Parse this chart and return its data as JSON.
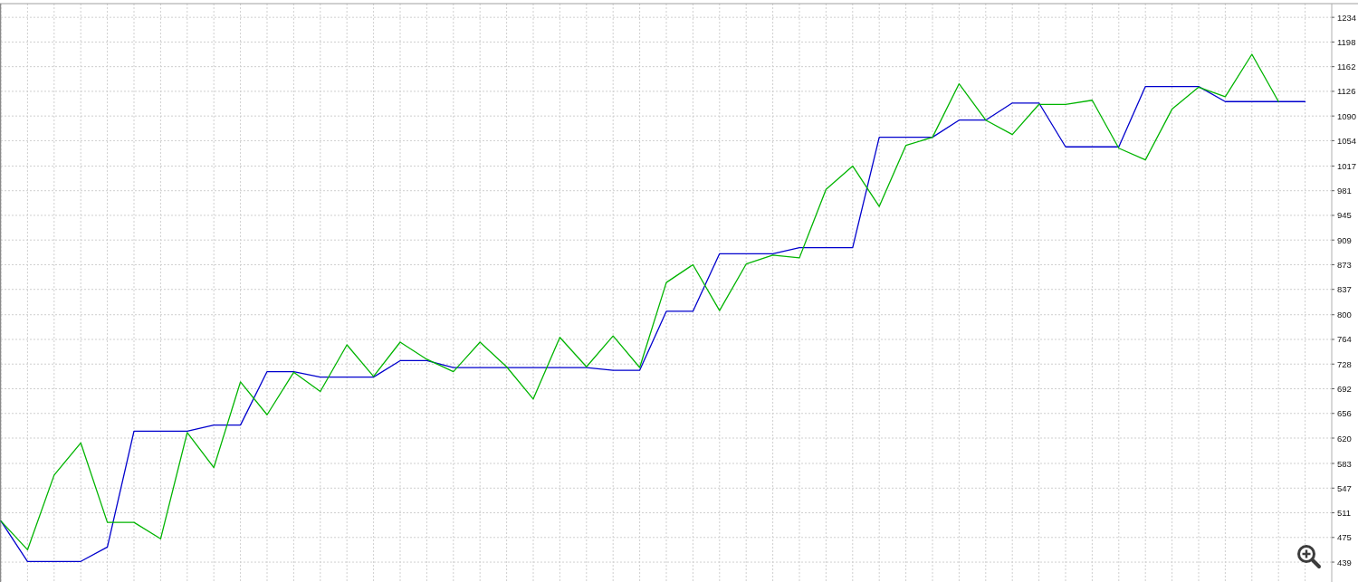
{
  "chart_data": {
    "type": "line",
    "categories": [
      null,
      null,
      null,
      null,
      null,
      null,
      null,
      null,
      null,
      null,
      null,
      null,
      null,
      null,
      null,
      null,
      null,
      null,
      null,
      null,
      null,
      null,
      null,
      null,
      null,
      null,
      null,
      null,
      null,
      null,
      null,
      null,
      null,
      null,
      null,
      null,
      null,
      null,
      null,
      null,
      null,
      null,
      null,
      null,
      null,
      null,
      null,
      null,
      null,
      null
    ],
    "series": [
      {
        "color": "#0000cd",
        "values": [
          499,
          440,
          440,
          440,
          461,
          630,
          630,
          630,
          639,
          639,
          717,
          717,
          709,
          709,
          709,
          733,
          733,
          723,
          723,
          723,
          723,
          723,
          723,
          719,
          719,
          805,
          805,
          889,
          889,
          889,
          898,
          898,
          898,
          1059,
          1059,
          1059,
          1084,
          1084,
          1109,
          1109,
          1045,
          1045,
          1045,
          1133,
          1133,
          1133,
          1111,
          1111,
          1111,
          1111
        ]
      },
      {
        "color": "#00b400",
        "values": [
          499,
          457,
          566,
          613,
          497,
          497,
          473,
          628,
          577,
          702,
          654,
          716,
          688,
          756,
          710,
          760,
          735,
          717,
          760,
          724,
          677,
          767,
          724,
          769,
          723,
          847,
          873,
          806,
          874,
          887,
          883,
          983,
          1017,
          958,
          1047,
          1059,
          1137,
          1084,
          1063,
          1107,
          1107,
          1113,
          1043,
          1026,
          1100,
          1132,
          1118,
          1180,
          1111,
          null
        ]
      }
    ],
    "ylim": [
      410,
      1254
    ],
    "yticks": [
      439,
      475,
      511,
      547,
      583,
      620,
      656,
      692,
      728,
      764,
      800,
      837,
      873,
      909,
      945,
      981,
      1017,
      1054,
      1090,
      1126,
      1162,
      1198,
      1234
    ],
    "grid": true,
    "tick_labels": "y"
  }
}
